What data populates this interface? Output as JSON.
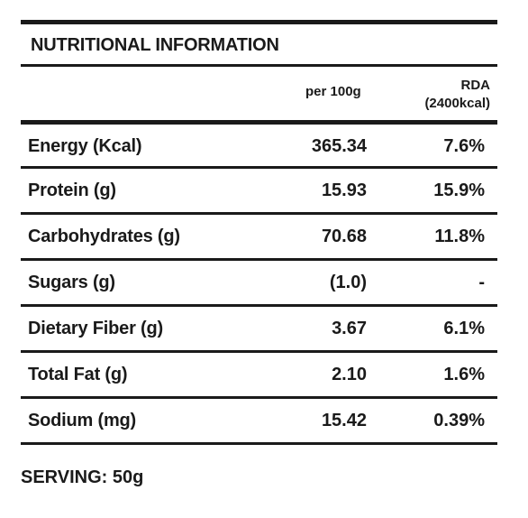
{
  "title": "NUTRITIONAL INFORMATION",
  "columns": {
    "per_100g": "per 100g",
    "rda_line1": "RDA",
    "rda_line2": "(2400kcal)"
  },
  "rows": [
    {
      "label": "Energy (Kcal)",
      "per_100g": "365.34",
      "rda": "7.6%"
    },
    {
      "label": "Protein (g)",
      "per_100g": "15.93",
      "rda": "15.9%"
    },
    {
      "label": "Carbohydrates (g)",
      "per_100g": "70.68",
      "rda": "11.8%"
    },
    {
      "label": "Sugars (g)",
      "per_100g": "(1.0)",
      "rda": "-"
    },
    {
      "label": "Dietary Fiber (g)",
      "per_100g": "3.67",
      "rda": "6.1%"
    },
    {
      "label": "Total Fat (g)",
      "per_100g": "2.10",
      "rda": "1.6%"
    },
    {
      "label": "Sodium (mg)",
      "per_100g": "15.42",
      "rda": "0.39%"
    }
  ],
  "serving": "SERVING: 50g"
}
